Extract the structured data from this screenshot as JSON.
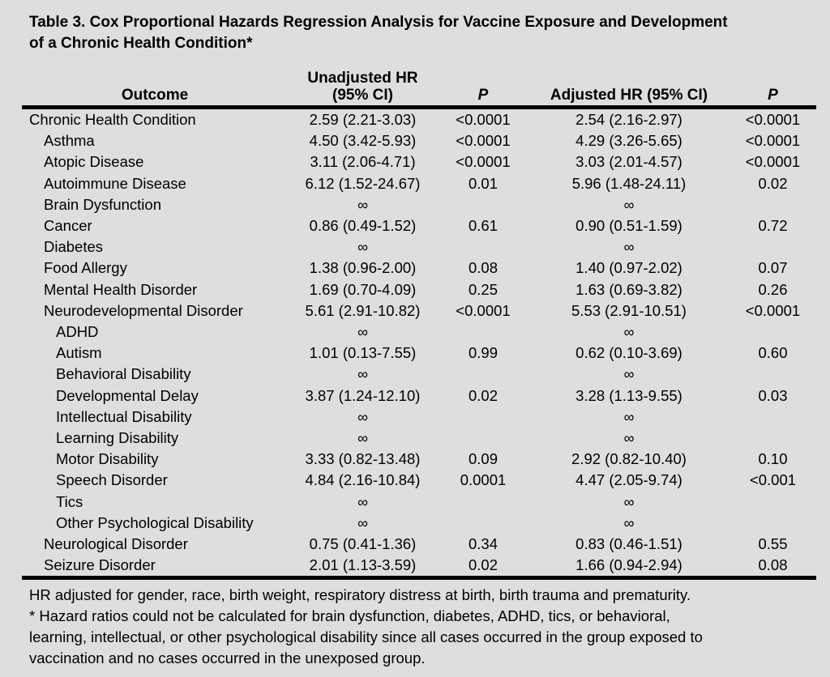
{
  "title": {
    "line1": "Table 3. Cox Proportional Hazards Regression Analysis for Vaccine Exposure and Development",
    "line2": "of a Chronic Health Condition*"
  },
  "table": {
    "headers": {
      "outcome": "Outcome",
      "unadjusted_hr_line1": "Unadjusted HR",
      "unadjusted_hr_line2": "(95% CI)",
      "p1": "P",
      "adjusted_hr": "Adjusted HR (95% CI)",
      "p2": "P"
    },
    "rows": [
      {
        "label": "Chronic Health Condition",
        "indent": 0,
        "unadjusted_hr": "2.59 (2.21-3.03)",
        "unadjusted_p": "<0.0001",
        "adjusted_hr": "2.54 (2.16-2.97)",
        "adjusted_p": "<0.0001"
      },
      {
        "label": "Asthma",
        "indent": 1,
        "unadjusted_hr": "4.50 (3.42-5.93)",
        "unadjusted_p": "<0.0001",
        "adjusted_hr": "4.29 (3.26-5.65)",
        "adjusted_p": "<0.0001"
      },
      {
        "label": "Atopic Disease",
        "indent": 1,
        "unadjusted_hr": "3.11 (2.06-4.71)",
        "unadjusted_p": "<0.0001",
        "adjusted_hr": "3.03 (2.01-4.57)",
        "adjusted_p": "<0.0001"
      },
      {
        "label": "Autoimmune Disease",
        "indent": 1,
        "unadjusted_hr": "6.12 (1.52-24.67)",
        "unadjusted_p": "0.01",
        "adjusted_hr": "5.96 (1.48-24.11)",
        "adjusted_p": "0.02"
      },
      {
        "label": "Brain Dysfunction",
        "indent": 1,
        "unadjusted_hr": "∞",
        "unadjusted_p": "",
        "adjusted_hr": "∞",
        "adjusted_p": ""
      },
      {
        "label": "Cancer",
        "indent": 1,
        "unadjusted_hr": "0.86 (0.49-1.52)",
        "unadjusted_p": "0.61",
        "adjusted_hr": "0.90 (0.51-1.59)",
        "adjusted_p": "0.72"
      },
      {
        "label": "Diabetes",
        "indent": 1,
        "unadjusted_hr": "∞",
        "unadjusted_p": "",
        "adjusted_hr": "∞",
        "adjusted_p": ""
      },
      {
        "label": "Food Allergy",
        "indent": 1,
        "unadjusted_hr": "1.38 (0.96-2.00)",
        "unadjusted_p": "0.08",
        "adjusted_hr": "1.40 (0.97-2.02)",
        "adjusted_p": "0.07"
      },
      {
        "label": "Mental Health Disorder",
        "indent": 1,
        "unadjusted_hr": "1.69 (0.70-4.09)",
        "unadjusted_p": "0.25",
        "adjusted_hr": "1.63 (0.69-3.82)",
        "adjusted_p": "0.26"
      },
      {
        "label": "Neurodevelopmental Disorder",
        "indent": 1,
        "unadjusted_hr": "5.61 (2.91-10.82)",
        "unadjusted_p": "<0.0001",
        "adjusted_hr": "5.53 (2.91-10.51)",
        "adjusted_p": "<0.0001"
      },
      {
        "label": "ADHD",
        "indent": 2,
        "unadjusted_hr": "∞",
        "unadjusted_p": "",
        "adjusted_hr": "∞",
        "adjusted_p": ""
      },
      {
        "label": "Autism",
        "indent": 2,
        "unadjusted_hr": "1.01 (0.13-7.55)",
        "unadjusted_p": "0.99",
        "adjusted_hr": "0.62 (0.10-3.69)",
        "adjusted_p": "0.60"
      },
      {
        "label": "Behavioral Disability",
        "indent": 2,
        "unadjusted_hr": "∞",
        "unadjusted_p": "",
        "adjusted_hr": "∞",
        "adjusted_p": ""
      },
      {
        "label": "Developmental Delay",
        "indent": 2,
        "unadjusted_hr": "3.87 (1.24-12.10)",
        "unadjusted_p": "0.02",
        "adjusted_hr": "3.28 (1.13-9.55)",
        "adjusted_p": "0.03"
      },
      {
        "label": "Intellectual Disability",
        "indent": 2,
        "unadjusted_hr": "∞",
        "unadjusted_p": "",
        "adjusted_hr": "∞",
        "adjusted_p": ""
      },
      {
        "label": "Learning Disability",
        "indent": 2,
        "unadjusted_hr": "∞",
        "unadjusted_p": "",
        "adjusted_hr": "∞",
        "adjusted_p": ""
      },
      {
        "label": "Motor Disability",
        "indent": 2,
        "unadjusted_hr": "3.33 (0.82-13.48)",
        "unadjusted_p": "0.09",
        "adjusted_hr": "2.92 (0.82-10.40)",
        "adjusted_p": "0.10"
      },
      {
        "label": "Speech Disorder",
        "indent": 2,
        "unadjusted_hr": "4.84 (2.16-10.84)",
        "unadjusted_p": "0.0001",
        "adjusted_hr": "4.47 (2.05-9.74)",
        "adjusted_p": "<0.001"
      },
      {
        "label": "Tics",
        "indent": 2,
        "unadjusted_hr": "∞",
        "unadjusted_p": "",
        "adjusted_hr": "∞",
        "adjusted_p": ""
      },
      {
        "label": "Other Psychological Disability",
        "indent": 2,
        "unadjusted_hr": "∞",
        "unadjusted_p": "",
        "adjusted_hr": "∞",
        "adjusted_p": ""
      },
      {
        "label": "Neurological Disorder",
        "indent": 1,
        "unadjusted_hr": "0.75 (0.41-1.36)",
        "unadjusted_p": "0.34",
        "adjusted_hr": "0.83 (0.46-1.51)",
        "adjusted_p": "0.55"
      },
      {
        "label": "Seizure Disorder",
        "indent": 1,
        "unadjusted_hr": "2.01 (1.13-3.59)",
        "unadjusted_p": "0.02",
        "adjusted_hr": "1.66 (0.94-2.94)",
        "adjusted_p": "0.08"
      }
    ]
  },
  "footnotes": {
    "lines": [
      "HR adjusted for gender, race, birth weight, respiratory distress at birth, birth trauma and prematurity.",
      "* Hazard ratios could not be calculated for brain dysfunction, diabetes, ADHD, tics, or behavioral,",
      "learning, intellectual, or other psychological disability since all cases occurred in the group exposed to",
      "vaccination and no cases occurred in the unexposed group."
    ]
  },
  "colors": {
    "background": "#dedede",
    "text": "#000000",
    "rule": "#000000"
  }
}
